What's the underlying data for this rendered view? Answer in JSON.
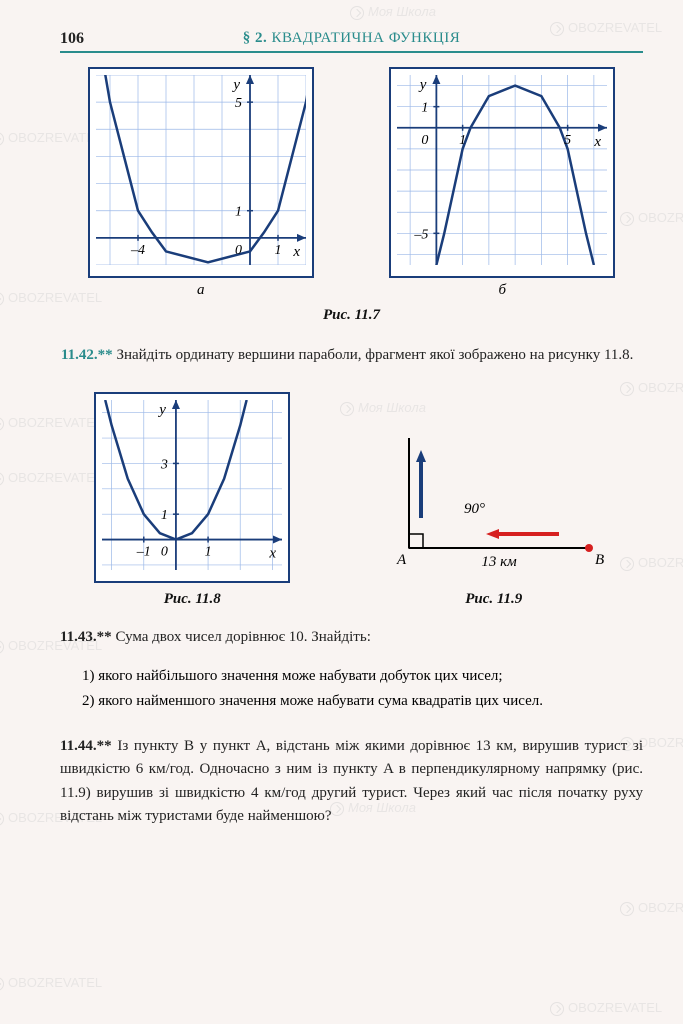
{
  "page_number": "106",
  "section_title_prefix": "§ 2.",
  "section_title_rest": "КВАДРАТИЧНА ФУНКЦІЯ",
  "watermark_text": "OBOZREVATEL",
  "watermark_sub": "Моя Школа",
  "chart_a": {
    "type": "line",
    "caption": "а",
    "xlabel": "x",
    "ylabel": "y",
    "xlim": [
      -5.5,
      2
    ],
    "ylim": [
      -1,
      6
    ],
    "xticks": [
      {
        "v": -4,
        "l": "–4"
      },
      {
        "v": 1,
        "l": "1"
      }
    ],
    "yticks": [
      {
        "v": 1,
        "l": "1"
      },
      {
        "v": 5,
        "l": "5"
      }
    ],
    "origin_label": "0",
    "grid_color": "#9bb8e8",
    "curve_color": "#1a3d7a",
    "axis_color": "#1a3d7a",
    "curve_points": [
      [
        -5.2,
        6.2
      ],
      [
        -5,
        5
      ],
      [
        -4,
        1
      ],
      [
        -3.5,
        0.2
      ],
      [
        -3,
        -0.5
      ],
      [
        -1.5,
        -0.9
      ],
      [
        0,
        -0.5
      ],
      [
        0.5,
        0.2
      ],
      [
        1,
        1
      ],
      [
        2,
        5
      ],
      [
        2.2,
        6.2
      ]
    ]
  },
  "chart_b": {
    "type": "line",
    "caption": "б",
    "xlabel": "x",
    "ylabel": "y",
    "xlim": [
      -1.5,
      6.5
    ],
    "ylim": [
      -6.5,
      2.5
    ],
    "xticks": [
      {
        "v": 1,
        "l": "1"
      },
      {
        "v": 5,
        "l": "5"
      }
    ],
    "yticks": [
      {
        "v": 1,
        "l": "1"
      },
      {
        "v": -5,
        "l": "–5"
      }
    ],
    "origin_label": "0",
    "grid_color": "#9bb8e8",
    "curve_color": "#1a3d7a",
    "axis_color": "#1a3d7a",
    "curve_points": [
      [
        0,
        -6.5
      ],
      [
        0.3,
        -5
      ],
      [
        1,
        -1
      ],
      [
        1.3,
        0
      ],
      [
        2,
        1.5
      ],
      [
        3,
        2
      ],
      [
        4,
        1.5
      ],
      [
        4.7,
        0
      ],
      [
        5,
        -1
      ],
      [
        5.7,
        -5
      ],
      [
        6,
        -6.5
      ]
    ]
  },
  "fig7_caption": "Рис. 11.7",
  "p42": {
    "num": "11.42.**",
    "text": "Знайдіть ординату вершини параболи, фрагмент якої зображено на рисунку 11.8."
  },
  "chart_8": {
    "type": "line",
    "caption": "Рис. 11.8",
    "xlabel": "x",
    "ylabel": "y",
    "xlim": [
      -2.3,
      3.3
    ],
    "ylim": [
      -1.2,
      5.5
    ],
    "xticks": [
      {
        "v": -1,
        "l": "–1"
      },
      {
        "v": 1,
        "l": "1"
      }
    ],
    "yticks": [
      {
        "v": 1,
        "l": "1"
      },
      {
        "v": 3,
        "l": "3"
      }
    ],
    "origin_label": "0",
    "grid_color": "#9bb8e8",
    "curve_color": "#1a3d7a",
    "axis_color": "#1a3d7a",
    "curve_points": [
      [
        -2.2,
        5.5
      ],
      [
        -2,
        4.5
      ],
      [
        -1.5,
        2.4
      ],
      [
        -1,
        1
      ],
      [
        -0.5,
        0.25
      ],
      [
        0,
        0
      ],
      [
        0.5,
        0.25
      ],
      [
        1,
        1
      ],
      [
        1.5,
        2.4
      ],
      [
        2,
        4.5
      ],
      [
        2.2,
        5.5
      ]
    ]
  },
  "diagram_9": {
    "caption": "Рис. 11.9",
    "angle_label": "90°",
    "point_a": "A",
    "point_b": "B",
    "distance_label": "13 км",
    "axis_color": "#000",
    "arrow_up_color": "#1a3d7a",
    "arrow_left_color": "#d62020",
    "point_b_color": "#d62020"
  },
  "p43": {
    "num": "11.43.**",
    "intro": "Сума двох чисел дорівнює 10. Знайдіть:",
    "item1": "1) якого найбільшого значення може набувати добуток цих чисел;",
    "item2": "2) якого найменшого значення може набувати сума квадратів цих чисел."
  },
  "p44": {
    "num": "11.44.**",
    "text": "Із пункту B у пункт A, відстань між якими дорівнює 13 км, вирушив турист зі швидкістю 6 км/год. Одночасно з ним із пункту A в перпендикулярному напрямку (рис. 11.9) вирушив зі швидкістю 4 км/год другий турист. Через який час після початку руху відстань між туристами буде найменшою?"
  }
}
